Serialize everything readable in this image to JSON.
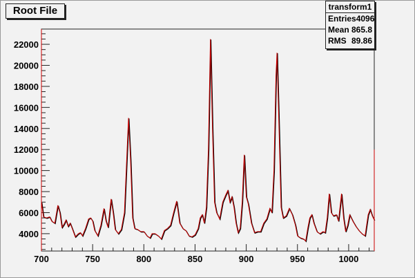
{
  "title_button": "Root File",
  "stats": {
    "name": "transform1",
    "rows": [
      {
        "label": "Entries",
        "value": "4096"
      },
      {
        "label": "Mean",
        "value": "865.8"
      },
      {
        "label": "RMS",
        "value": "89.86"
      }
    ]
  },
  "colors": {
    "histogram": "#cc0000",
    "overlay": "#000000",
    "background": "#f2f2f2"
  },
  "chart_data": {
    "type": "line",
    "title": "transform1",
    "xlim": [
      700,
      1025
    ],
    "ylim": [
      2350,
      23450
    ],
    "xticks": [
      700,
      750,
      800,
      850,
      900,
      950,
      1000
    ],
    "yticks": [
      4000,
      6000,
      8000,
      10000,
      12000,
      14000,
      16000,
      18000,
      20000,
      22000
    ],
    "grid": false,
    "x": [
      700,
      702,
      705,
      708,
      710,
      713,
      716,
      718,
      720,
      722,
      724,
      726,
      728,
      730,
      733,
      736,
      738,
      740,
      743,
      746,
      748,
      750,
      752,
      755,
      758,
      761,
      763,
      765,
      768,
      770,
      772,
      775,
      778,
      781,
      783,
      785,
      787,
      789,
      791,
      794,
      797,
      800,
      803,
      806,
      808,
      811,
      814,
      817,
      820,
      823,
      826,
      829,
      832,
      835,
      838,
      841,
      844,
      847,
      850,
      853,
      855,
      857,
      859,
      861,
      863,
      865,
      867,
      869,
      871,
      874,
      877,
      880,
      882,
      884,
      886,
      888,
      890,
      892,
      894,
      896,
      898,
      900,
      902,
      905,
      908,
      911,
      914,
      917,
      920,
      923,
      925,
      927,
      929,
      930,
      932,
      934,
      936,
      939,
      942,
      945,
      948,
      950,
      953,
      956,
      958,
      960,
      962,
      964,
      966,
      969,
      972,
      975,
      977,
      979,
      981,
      983,
      985,
      988,
      990,
      993,
      995,
      997,
      999,
      1001,
      1004,
      1007,
      1010,
      1013,
      1016,
      1019,
      1021,
      1023,
      1025
    ],
    "y": [
      7000,
      5600,
      5500,
      5600,
      5200,
      5000,
      6700,
      6000,
      4600,
      4900,
      5300,
      4700,
      5000,
      4500,
      3700,
      4000,
      4100,
      3800,
      4500,
      5400,
      5500,
      5200,
      4300,
      3800,
      4800,
      6400,
      5200,
      4600,
      7300,
      6000,
      4400,
      4000,
      4400,
      6000,
      10500,
      15000,
      11000,
      5500,
      4500,
      4400,
      4200,
      4200,
      3800,
      3600,
      4000,
      4000,
      3800,
      3500,
      4300,
      4500,
      4800,
      6000,
      7100,
      5000,
      4500,
      4300,
      3800,
      3700,
      3900,
      4500,
      5500,
      5800,
      5000,
      6500,
      12000,
      22500,
      14000,
      7000,
      6000,
      5400,
      7000,
      7700,
      8100,
      7000,
      7500,
      6500,
      5000,
      4100,
      4500,
      7000,
      11500,
      7500,
      6800,
      5000,
      4100,
      4200,
      4200,
      5000,
      5400,
      6400,
      6000,
      10000,
      19000,
      21200,
      14000,
      6500,
      5500,
      5700,
      6400,
      5800,
      4800,
      3800,
      3600,
      3500,
      3300,
      4500,
      5500,
      5800,
      5000,
      4200,
      4000,
      4200,
      4100,
      5500,
      7800,
      6000,
      5700,
      5800,
      5200,
      7800,
      5500,
      4200,
      4800,
      5800,
      5200,
      4700,
      4300,
      4000,
      3800,
      5800,
      6300,
      5700,
      5300
    ]
  }
}
